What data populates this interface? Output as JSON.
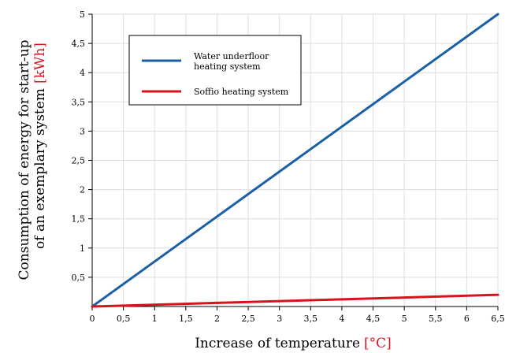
{
  "chart_data": {
    "type": "line",
    "title": "",
    "xlabel": {
      "text": "Increase of temperature",
      "unit": "[°C]"
    },
    "ylabel": {
      "line1": "Consumption of energy for start-up",
      "line2": "of an exemplary system",
      "unit": "[kWh]"
    },
    "xlim": [
      0,
      6.5
    ],
    "ylim": [
      0,
      5
    ],
    "x_ticks": [
      0,
      0.5,
      1,
      1.5,
      2,
      2.5,
      3,
      3.5,
      4,
      4.5,
      5,
      5.5,
      6,
      6.5
    ],
    "x_tick_labels": [
      "0",
      "0,5",
      "1",
      "1,5",
      "2",
      "2,5",
      "3",
      "3,5",
      "4",
      "4,5",
      "5",
      "5,5",
      "6",
      "6,5"
    ],
    "y_ticks": [
      0.5,
      1,
      1.5,
      2,
      2.5,
      3,
      3.5,
      4,
      4.5,
      5
    ],
    "y_tick_labels": [
      "0,5",
      "1",
      "1,5",
      "2",
      "2,5",
      "3",
      "3,5",
      "4",
      "4,5",
      "5"
    ],
    "grid": true,
    "legend_position": "top-left",
    "series": [
      {
        "name": "Water underfloor heating system",
        "legend_lines": [
          "Water underfloor",
          "heating system"
        ],
        "color": "#1a5fa8",
        "x": [
          0,
          6.5
        ],
        "y": [
          0,
          5.0
        ]
      },
      {
        "name": "Soffio heating system",
        "legend_lines": [
          "Soffio heating system"
        ],
        "color": "#d7141e",
        "x": [
          0,
          6.5
        ],
        "y": [
          0,
          0.2
        ]
      }
    ],
    "colors": {
      "unit_accent": "#d7141e",
      "grid": "#dddddd",
      "axis": "#000000"
    }
  }
}
